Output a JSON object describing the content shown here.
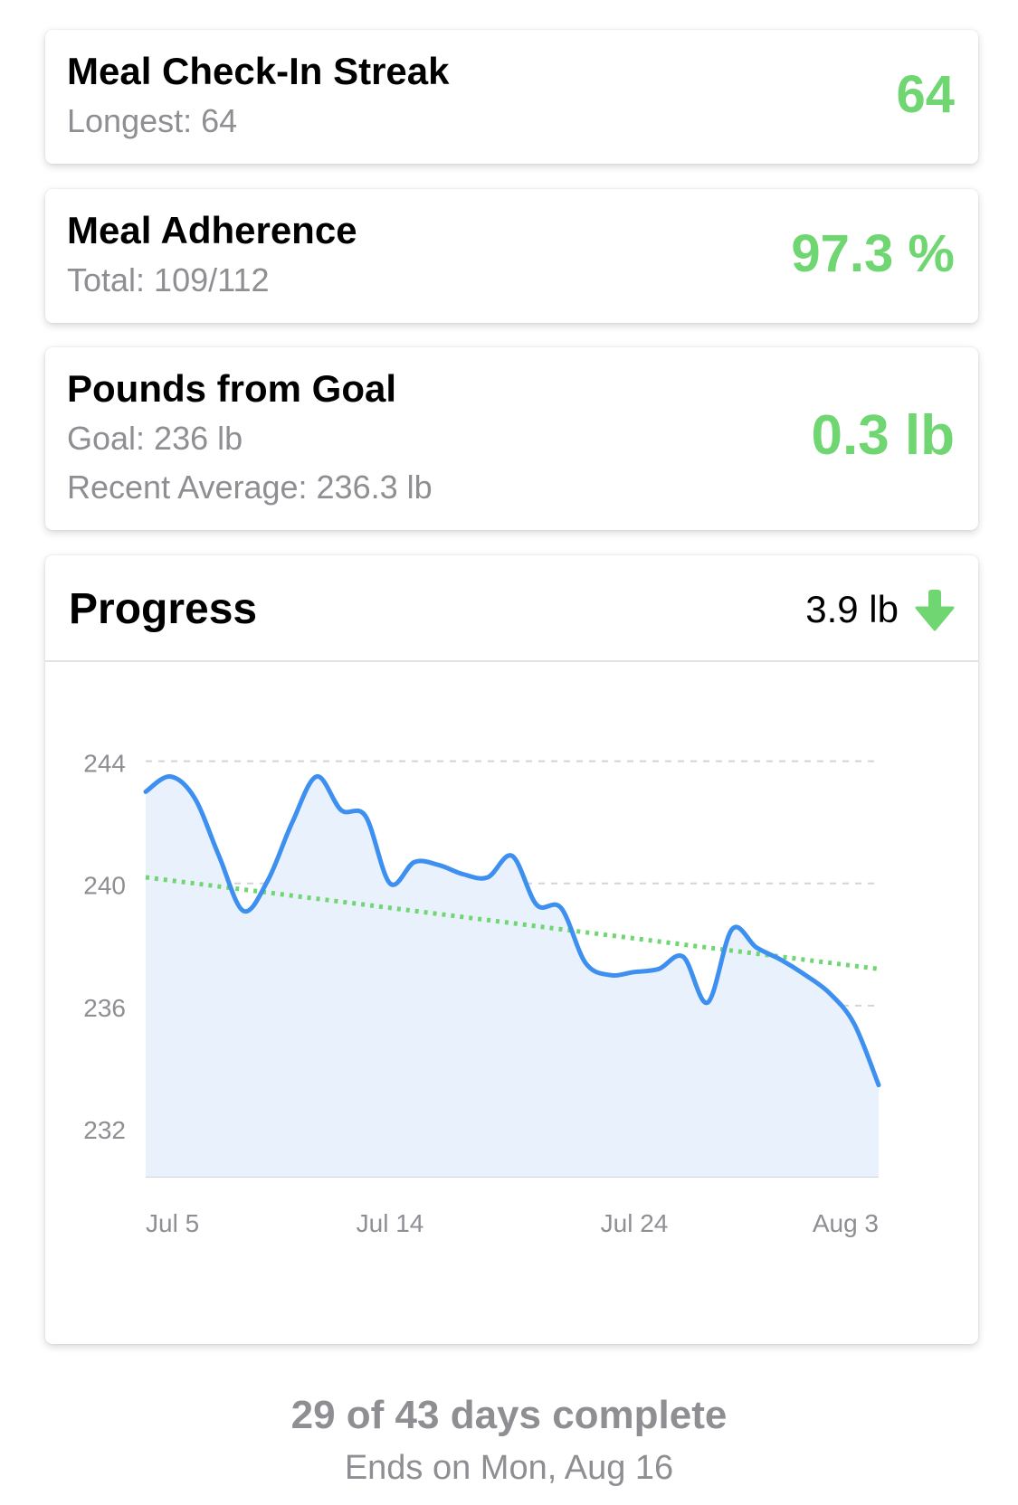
{
  "stats": {
    "streak": {
      "title": "Meal Check-In Streak",
      "subtitle": "Longest: 64",
      "value": "64"
    },
    "adherence": {
      "title": "Meal Adherence",
      "subtitle": "Total: 109/112",
      "value": "97.3 %"
    },
    "goal": {
      "title": "Pounds from Goal",
      "subtitle_goal": "Goal: 236 lb",
      "subtitle_average": "Recent Average: 236.3 lb",
      "value": "0.3 lb"
    }
  },
  "progress": {
    "title": "Progress",
    "change": "3.9 lb",
    "change_icon": "arrow-down-icon"
  },
  "colors": {
    "accent_green": "#6fd672",
    "line_blue": "#3d8ff0",
    "fill_blue": "#e9f1fc",
    "muted_gray": "#8e8e93"
  },
  "chart_data": {
    "type": "area",
    "x_tick_labels": [
      "Jul 5",
      "Jul 14",
      "Jul 24",
      "Aug 3"
    ],
    "y_tick_labels": [
      "244",
      "240",
      "236",
      "232"
    ],
    "ylim": [
      230.4,
      244.7
    ],
    "grid": true,
    "series": [
      {
        "x": [
          "Jul 4",
          "Jul 5",
          "Jul 6",
          "Jul 7",
          "Jul 8",
          "Jul 9",
          "Jul 10",
          "Jul 11",
          "Jul 12",
          "Jul 13",
          "Jul 14",
          "Jul 15",
          "Jul 16",
          "Jul 17",
          "Jul 18",
          "Jul 19",
          "Jul 20",
          "Jul 21",
          "Jul 22",
          "Jul 23",
          "Jul 24",
          "Jul 25",
          "Jul 26",
          "Jul 27",
          "Jul 28",
          "Jul 29",
          "Jul 30",
          "Jul 31",
          "Aug 1",
          "Aug 2",
          "Aug 3"
        ],
        "values": [
          243.0,
          243.5,
          242.8,
          240.9,
          239.1,
          240.1,
          242.0,
          243.5,
          242.4,
          242.2,
          240.0,
          240.7,
          240.6,
          240.3,
          240.2,
          240.9,
          239.3,
          239.2,
          237.4,
          237.0,
          237.1,
          237.2,
          237.6,
          236.1,
          238.5,
          237.9,
          237.5,
          237.0,
          236.4,
          235.4,
          233.4
        ]
      },
      {
        "type": "trend",
        "x": [
          "Jul 4",
          "Aug 3"
        ],
        "values": [
          240.2,
          237.2
        ]
      }
    ]
  },
  "footer": {
    "days_complete": "29 of 43 days complete",
    "end_date": "Ends on Mon, Aug 16"
  }
}
